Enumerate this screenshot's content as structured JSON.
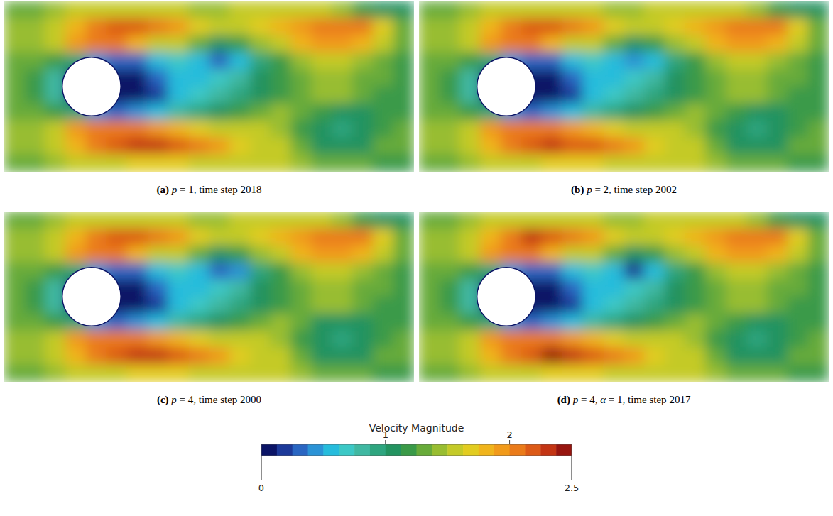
{
  "chart_data": {
    "type": "heatmap",
    "panels": [
      {
        "label": "(a)",
        "caption": "p = 1, time step 2018",
        "cells": [
          [
            1.3,
            1.3,
            1.4,
            1.5,
            1.6,
            1.6,
            1.6,
            1.5,
            1.5,
            1.4,
            1.4,
            1.5,
            1.5,
            1.6,
            1.6,
            1.5,
            1.4,
            1.2,
            1.1,
            1.0
          ],
          [
            1.4,
            1.4,
            1.5,
            1.8,
            2.1,
            2.2,
            2.2,
            2.1,
            1.9,
            1.7,
            1.6,
            1.6,
            1.7,
            1.8,
            1.9,
            2.0,
            2.1,
            2.0,
            1.7,
            1.3
          ],
          [
            1.4,
            1.4,
            1.5,
            1.9,
            2.1,
            2.0,
            1.8,
            1.6,
            1.5,
            1.3,
            1.1,
            1.2,
            1.4,
            1.6,
            1.8,
            1.9,
            1.9,
            1.8,
            1.5,
            1.3
          ],
          [
            1.3,
            1.3,
            1.2,
            0.9,
            0.4,
            0.3,
            0.3,
            0.5,
            0.7,
            0.6,
            0.3,
            0.5,
            0.9,
            1.2,
            1.4,
            1.5,
            1.5,
            1.4,
            1.3,
            1.2
          ],
          [
            1.3,
            1.2,
            0.8,
            0,
            0,
            0.1,
            0.1,
            0.3,
            0.5,
            0.6,
            0.7,
            0.8,
            1.0,
            1.2,
            1.3,
            1.4,
            1.4,
            1.3,
            1.3,
            1.2
          ],
          [
            1.3,
            1.2,
            0.8,
            0,
            0,
            0.1,
            0.1,
            0.2,
            0.5,
            0.7,
            0.8,
            0.9,
            1.1,
            1.2,
            1.3,
            1.4,
            1.4,
            1.3,
            1.2,
            1.2
          ],
          [
            1.3,
            1.3,
            1.2,
            0.9,
            0.4,
            0.3,
            0.4,
            0.6,
            0.8,
            0.9,
            1.1,
            1.2,
            1.3,
            1.4,
            1.3,
            1.2,
            1.1,
            1.1,
            1.2,
            1.2
          ],
          [
            1.4,
            1.4,
            1.5,
            1.9,
            2.1,
            2.1,
            2.0,
            1.9,
            1.8,
            1.7,
            1.6,
            1.5,
            1.5,
            1.4,
            1.2,
            1.0,
            0.9,
            1.0,
            1.2,
            1.3
          ],
          [
            1.4,
            1.4,
            1.5,
            1.8,
            2.1,
            2.2,
            2.3,
            2.3,
            2.2,
            2.1,
            1.9,
            1.7,
            1.6,
            1.5,
            1.3,
            1.1,
            1.0,
            1.1,
            1.3,
            1.3
          ],
          [
            1.3,
            1.3,
            1.4,
            1.5,
            1.6,
            1.6,
            1.7,
            1.7,
            1.7,
            1.6,
            1.6,
            1.5,
            1.5,
            1.5,
            1.4,
            1.3,
            1.3,
            1.3,
            1.2,
            1.2
          ]
        ]
      },
      {
        "label": "(b)",
        "caption": "p = 2, time step 2002",
        "cells": [
          [
            1.3,
            1.3,
            1.4,
            1.5,
            1.6,
            1.6,
            1.6,
            1.5,
            1.5,
            1.4,
            1.4,
            1.5,
            1.5,
            1.6,
            1.6,
            1.5,
            1.4,
            1.2,
            1.1,
            1.0
          ],
          [
            1.4,
            1.4,
            1.5,
            1.8,
            2.1,
            2.2,
            2.2,
            2.1,
            1.9,
            1.7,
            1.6,
            1.6,
            1.7,
            1.8,
            1.9,
            2.0,
            2.0,
            2.0,
            1.7,
            1.3
          ],
          [
            1.4,
            1.4,
            1.5,
            1.9,
            2.1,
            2.0,
            1.8,
            1.6,
            1.5,
            1.3,
            1.1,
            1.2,
            1.4,
            1.6,
            1.8,
            1.9,
            1.9,
            1.8,
            1.5,
            1.3
          ],
          [
            1.3,
            1.3,
            1.2,
            0.9,
            0.4,
            0.3,
            0.3,
            0.5,
            0.7,
            0.6,
            0.4,
            0.5,
            0.9,
            1.2,
            1.4,
            1.5,
            1.5,
            1.4,
            1.3,
            1.2
          ],
          [
            1.3,
            1.2,
            0.8,
            0,
            0,
            0.1,
            0.1,
            0.3,
            0.5,
            0.6,
            0.7,
            0.8,
            1.0,
            1.2,
            1.3,
            1.4,
            1.4,
            1.3,
            1.3,
            1.2
          ],
          [
            1.3,
            1.2,
            0.8,
            0,
            0,
            0.1,
            0.1,
            0.2,
            0.5,
            0.7,
            0.8,
            0.9,
            1.1,
            1.2,
            1.3,
            1.4,
            1.4,
            1.3,
            1.2,
            1.2
          ],
          [
            1.3,
            1.3,
            1.2,
            0.9,
            0.4,
            0.3,
            0.4,
            0.6,
            0.8,
            0.9,
            1.1,
            1.2,
            1.3,
            1.4,
            1.3,
            1.2,
            1.1,
            1.1,
            1.2,
            1.2
          ],
          [
            1.4,
            1.4,
            1.5,
            1.9,
            2.1,
            2.1,
            2.0,
            1.9,
            1.8,
            1.7,
            1.6,
            1.5,
            1.5,
            1.4,
            1.2,
            1.0,
            0.9,
            1.0,
            1.2,
            1.3
          ],
          [
            1.4,
            1.4,
            1.5,
            1.8,
            2.1,
            2.2,
            2.3,
            2.2,
            2.2,
            2.1,
            1.9,
            1.7,
            1.6,
            1.5,
            1.3,
            1.1,
            1.0,
            1.1,
            1.3,
            1.3
          ],
          [
            1.3,
            1.3,
            1.4,
            1.5,
            1.6,
            1.6,
            1.7,
            1.7,
            1.7,
            1.6,
            1.6,
            1.5,
            1.5,
            1.5,
            1.4,
            1.3,
            1.3,
            1.3,
            1.2,
            1.2
          ]
        ]
      },
      {
        "label": "(c)",
        "caption": "p = 4, time step 2000",
        "cells": [
          [
            1.3,
            1.3,
            1.4,
            1.5,
            1.6,
            1.6,
            1.6,
            1.5,
            1.5,
            1.4,
            1.4,
            1.5,
            1.5,
            1.6,
            1.6,
            1.5,
            1.4,
            1.2,
            1.1,
            1.0
          ],
          [
            1.4,
            1.4,
            1.5,
            1.8,
            2.1,
            2.2,
            2.2,
            2.1,
            1.9,
            1.7,
            1.6,
            1.6,
            1.7,
            1.8,
            1.9,
            2.0,
            2.1,
            2.1,
            1.7,
            1.3
          ],
          [
            1.4,
            1.4,
            1.5,
            1.9,
            2.1,
            2.0,
            1.8,
            1.6,
            1.5,
            1.3,
            1.1,
            1.2,
            1.4,
            1.6,
            1.8,
            1.9,
            1.9,
            1.8,
            1.5,
            1.3
          ],
          [
            1.3,
            1.3,
            1.2,
            0.9,
            0.4,
            0.3,
            0.3,
            0.5,
            0.7,
            0.6,
            0.3,
            0.4,
            0.9,
            1.2,
            1.4,
            1.5,
            1.5,
            1.4,
            1.3,
            1.2
          ],
          [
            1.3,
            1.2,
            0.8,
            0,
            0,
            0.1,
            0.1,
            0.3,
            0.5,
            0.6,
            0.7,
            0.8,
            1.0,
            1.2,
            1.3,
            1.4,
            1.4,
            1.3,
            1.3,
            1.2
          ],
          [
            1.3,
            1.2,
            0.8,
            0,
            0,
            0.1,
            0.1,
            0.2,
            0.5,
            0.7,
            0.8,
            0.9,
            1.1,
            1.2,
            1.3,
            1.4,
            1.4,
            1.3,
            1.2,
            1.2
          ],
          [
            1.3,
            1.3,
            1.2,
            0.9,
            0.4,
            0.3,
            0.4,
            0.6,
            0.8,
            0.9,
            1.1,
            1.2,
            1.3,
            1.4,
            1.3,
            1.1,
            1.1,
            1.1,
            1.2,
            1.2
          ],
          [
            1.4,
            1.4,
            1.5,
            1.9,
            2.1,
            2.1,
            2.0,
            1.9,
            1.8,
            1.7,
            1.6,
            1.5,
            1.5,
            1.4,
            1.2,
            1.0,
            0.9,
            1.0,
            1.2,
            1.3
          ],
          [
            1.4,
            1.4,
            1.5,
            1.8,
            2.1,
            2.2,
            2.3,
            2.3,
            2.2,
            2.1,
            1.9,
            1.7,
            1.6,
            1.5,
            1.3,
            1.1,
            1.0,
            1.1,
            1.3,
            1.3
          ],
          [
            1.3,
            1.3,
            1.4,
            1.5,
            1.6,
            1.6,
            1.7,
            1.7,
            1.7,
            1.6,
            1.6,
            1.5,
            1.5,
            1.5,
            1.4,
            1.3,
            1.3,
            1.3,
            1.2,
            1.2
          ]
        ]
      },
      {
        "label": "(d)",
        "caption": "p = 4, α = 1, time step 2017",
        "cells": [
          [
            1.3,
            1.3,
            1.4,
            1.5,
            1.6,
            1.6,
            1.6,
            1.5,
            1.5,
            1.4,
            1.4,
            1.5,
            1.5,
            1.6,
            1.6,
            1.5,
            1.4,
            1.2,
            1.1,
            1.0
          ],
          [
            1.4,
            1.4,
            1.5,
            1.8,
            2.1,
            2.3,
            2.2,
            2.1,
            1.9,
            1.7,
            1.6,
            1.6,
            1.7,
            1.8,
            1.9,
            2.0,
            2.1,
            2.0,
            1.7,
            1.3
          ],
          [
            1.4,
            1.4,
            1.5,
            1.9,
            2.1,
            2.0,
            1.8,
            1.6,
            1.5,
            1.3,
            1.1,
            1.2,
            1.4,
            1.6,
            1.8,
            1.9,
            1.9,
            1.8,
            1.5,
            1.3
          ],
          [
            1.3,
            1.3,
            1.2,
            0.9,
            0.4,
            0.3,
            0.3,
            0.5,
            0.7,
            0.6,
            0.2,
            0.5,
            0.9,
            1.2,
            1.4,
            1.5,
            1.5,
            1.4,
            1.3,
            1.2
          ],
          [
            1.3,
            1.2,
            0.8,
            0,
            0,
            0.1,
            0.1,
            0.3,
            0.5,
            0.6,
            0.7,
            0.8,
            1.0,
            1.2,
            1.3,
            1.4,
            1.4,
            1.3,
            1.3,
            1.2
          ],
          [
            1.3,
            1.2,
            0.8,
            0,
            0,
            0.1,
            0.1,
            0.2,
            0.5,
            0.7,
            0.8,
            0.9,
            1.1,
            1.2,
            1.3,
            1.4,
            1.4,
            1.3,
            1.2,
            1.2
          ],
          [
            1.3,
            1.3,
            1.2,
            0.9,
            0.4,
            0.3,
            0.4,
            0.6,
            0.8,
            0.9,
            1.1,
            1.2,
            1.3,
            1.4,
            1.3,
            1.2,
            1.1,
            1.1,
            1.2,
            1.2
          ],
          [
            1.4,
            1.4,
            1.5,
            1.9,
            2.1,
            2.1,
            2.0,
            1.9,
            1.8,
            1.7,
            1.6,
            1.5,
            1.5,
            1.4,
            1.2,
            1.0,
            0.9,
            1.0,
            1.2,
            1.3
          ],
          [
            1.4,
            1.4,
            1.5,
            1.8,
            2.1,
            2.2,
            2.4,
            2.3,
            2.2,
            2.1,
            1.9,
            1.7,
            1.6,
            1.5,
            1.3,
            1.1,
            1.0,
            1.1,
            1.3,
            1.3
          ],
          [
            1.3,
            1.3,
            1.4,
            1.5,
            1.6,
            1.6,
            1.7,
            1.7,
            1.7,
            1.6,
            1.6,
            1.5,
            1.5,
            1.5,
            1.4,
            1.3,
            1.3,
            1.3,
            1.2,
            1.2
          ]
        ]
      }
    ],
    "colorbar": {
      "title": "Velocity Magnitude",
      "range": [
        0,
        2.5
      ],
      "ticks": [
        0,
        1,
        2,
        2.5
      ],
      "colors": [
        "#0b1466",
        "#1d3a9a",
        "#2a66c2",
        "#2b93d6",
        "#26bcdc",
        "#3cc8c6",
        "#40b8a2",
        "#2ea57f",
        "#239360",
        "#3a9a48",
        "#68ab3a",
        "#98bd31",
        "#c4ca28",
        "#e2cc20",
        "#f0b41c",
        "#f19a1a",
        "#ea7b1a",
        "#dc5a17",
        "#c33514",
        "#97150f"
      ]
    }
  }
}
